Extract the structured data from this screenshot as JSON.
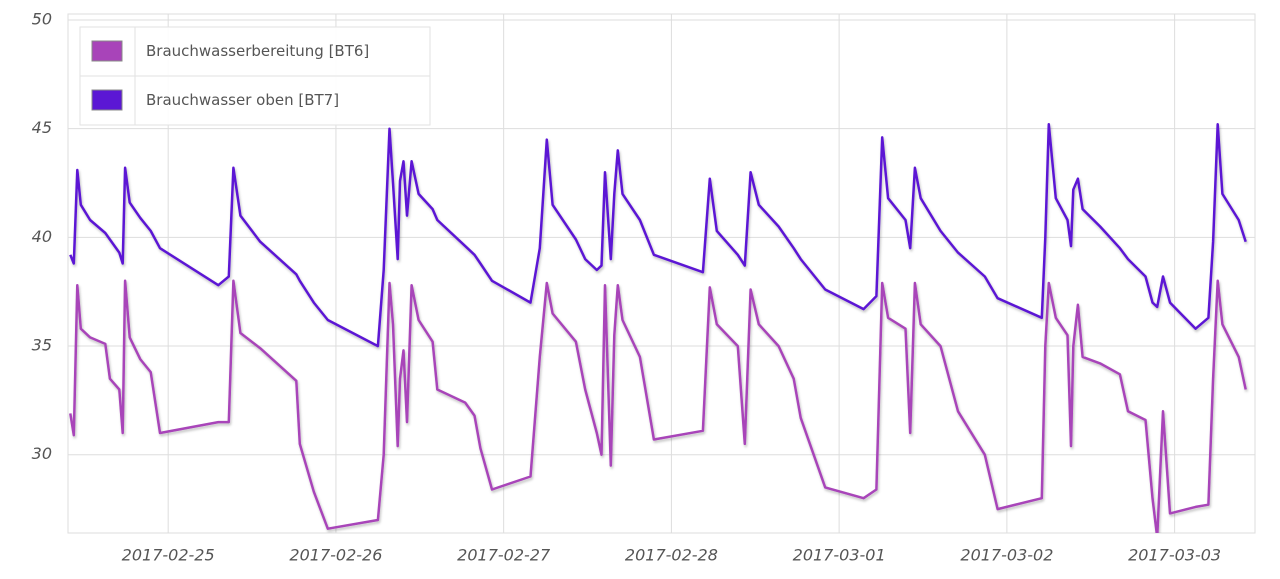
{
  "chart_data": {
    "type": "line",
    "x": [
      "2017-02-24 10:00",
      "2017-02-24 10:30",
      "2017-02-24 11:00",
      "2017-02-24 11:30",
      "2017-02-24 12:50",
      "2017-02-24 15:00",
      "2017-02-24 15:40",
      "2017-02-24 17:00",
      "2017-02-24 17:30",
      "2017-02-24 17:50",
      "2017-02-24 18:30",
      "2017-02-24 20:00",
      "2017-02-24 21:30",
      "2017-02-24 22:50",
      "2017-02-25 07:10",
      "2017-02-25 08:40",
      "2017-02-25 09:20",
      "2017-02-25 10:20",
      "2017-02-25 13:10",
      "2017-02-25 18:20",
      "2017-02-25 18:50",
      "2017-02-25 20:50",
      "2017-02-25 22:50",
      "2017-02-26 06:00",
      "2017-02-26 06:50",
      "2017-02-26 07:40",
      "2017-02-26 08:10",
      "2017-02-26 08:50",
      "2017-02-26 09:10",
      "2017-02-26 09:40",
      "2017-02-26 10:10",
      "2017-02-26 10:50",
      "2017-02-26 11:50",
      "2017-02-26 13:50",
      "2017-02-26 14:30",
      "2017-02-26 18:30",
      "2017-02-26 19:50",
      "2017-02-26 20:40",
      "2017-02-26 22:20",
      "2017-02-27 03:50",
      "2017-02-27 05:10",
      "2017-02-27 06:10",
      "2017-02-27 07:00",
      "2017-02-27 10:20",
      "2017-02-27 11:40",
      "2017-02-27 13:20",
      "2017-02-27 14:00",
      "2017-02-27 14:30",
      "2017-02-27 15:20",
      "2017-02-27 15:50",
      "2017-02-27 16:20",
      "2017-02-27 17:00",
      "2017-02-27 19:30",
      "2017-02-27 21:30",
      "2017-02-28 04:30",
      "2017-02-28 05:30",
      "2017-02-28 06:30",
      "2017-02-28 09:30",
      "2017-02-28 10:30",
      "2017-02-28 11:20",
      "2017-02-28 12:30",
      "2017-02-28 15:20",
      "2017-02-28 17:30",
      "2017-02-28 18:30",
      "2017-02-28 22:00",
      "2017-03-01 03:30",
      "2017-03-01 05:20",
      "2017-03-01 06:10",
      "2017-03-01 07:00",
      "2017-03-01 09:30",
      "2017-03-01 10:10",
      "2017-03-01 10:50",
      "2017-03-01 11:40",
      "2017-03-01 14:30",
      "2017-03-01 17:00",
      "2017-03-01 20:50",
      "2017-03-01 22:40",
      "2017-03-02 05:00",
      "2017-03-02 05:30",
      "2017-03-02 06:00",
      "2017-03-02 07:00",
      "2017-03-02 08:40",
      "2017-03-02 09:10",
      "2017-03-02 09:30",
      "2017-03-02 10:10",
      "2017-03-02 10:50",
      "2017-03-02 13:20",
      "2017-03-02 16:10",
      "2017-03-02 17:20",
      "2017-03-02 19:50",
      "2017-03-02 20:50",
      "2017-03-02 21:30",
      "2017-03-02 22:20",
      "2017-03-02 23:20",
      "2017-03-03 03:00",
      "2017-03-03 04:50",
      "2017-03-03 05:30",
      "2017-03-03 06:10",
      "2017-03-03 06:50",
      "2017-03-03 09:10",
      "2017-03-03 10:10"
    ],
    "series": [
      {
        "name": "Brauchwasserbereitung [BT6]",
        "color": "#a844b9",
        "values": [
          31.9,
          30.9,
          37.8,
          35.8,
          35.4,
          35.1,
          33.5,
          33.0,
          31.0,
          38.0,
          35.4,
          34.4,
          33.8,
          31.0,
          31.5,
          31.5,
          38.0,
          35.6,
          34.9,
          33.4,
          30.5,
          28.3,
          26.6,
          27.0,
          30.0,
          37.9,
          36.0,
          30.4,
          33.5,
          34.8,
          31.5,
          37.8,
          36.2,
          35.2,
          33.0,
          32.4,
          31.8,
          30.3,
          28.4,
          29.0,
          34.5,
          37.9,
          36.5,
          35.2,
          33.0,
          31.0,
          30.0,
          37.8,
          29.5,
          35.5,
          37.8,
          36.2,
          34.5,
          30.7,
          31.1,
          37.7,
          36.0,
          35.0,
          30.5,
          37.6,
          36.0,
          35.0,
          33.5,
          31.7,
          28.5,
          28.0,
          28.4,
          37.9,
          36.3,
          35.8,
          31.0,
          37.9,
          36.0,
          35.0,
          32.0,
          30.0,
          27.5,
          28.0,
          35.0,
          37.9,
          36.3,
          35.5,
          30.4,
          35.0,
          36.9,
          34.5,
          34.2,
          33.7,
          32.0,
          31.6,
          28.0,
          26.2,
          32.0,
          27.3,
          27.6,
          27.7,
          33.5,
          38.0,
          36.0,
          34.5,
          33.0
        ]
      },
      {
        "name": "Brauchwasser oben [BT7]",
        "color": "#5b17d4",
        "values": [
          39.2,
          38.8,
          43.1,
          41.5,
          40.8,
          40.2,
          39.9,
          39.3,
          38.8,
          43.2,
          41.6,
          40.9,
          40.3,
          39.5,
          37.8,
          38.2,
          43.2,
          41.0,
          39.8,
          38.3,
          38.0,
          37.0,
          36.2,
          35.0,
          38.5,
          45.0,
          42.5,
          39.0,
          42.6,
          43.5,
          41.0,
          43.5,
          42.0,
          41.3,
          40.8,
          39.6,
          39.2,
          38.8,
          38.0,
          37.0,
          39.5,
          44.5,
          41.5,
          39.9,
          39.0,
          38.5,
          38.7,
          43.0,
          39.0,
          42.0,
          44.0,
          42.0,
          40.8,
          39.2,
          38.4,
          42.7,
          40.3,
          39.2,
          38.7,
          43.0,
          41.5,
          40.5,
          39.5,
          39.0,
          37.6,
          36.7,
          37.3,
          44.6,
          41.8,
          40.8,
          39.5,
          43.2,
          41.8,
          40.3,
          39.3,
          38.2,
          37.2,
          36.3,
          40.0,
          45.2,
          41.8,
          40.8,
          39.6,
          42.2,
          42.7,
          41.3,
          40.5,
          39.5,
          39.0,
          38.2,
          37.0,
          36.8,
          38.2,
          37.0,
          35.8,
          36.3,
          39.8,
          45.2,
          42.0,
          40.8,
          39.8
        ]
      }
    ],
    "xlim": [
      "2017-02-24 09:40",
      "2017-03-03 11:30"
    ],
    "xticks": [
      "2017-02-25",
      "2017-02-26",
      "2017-02-27",
      "2017-02-28",
      "2017-03-01",
      "2017-03-02",
      "2017-03-03"
    ],
    "ylim": [
      26.4,
      50
    ],
    "yticks": [
      30,
      35,
      40,
      45,
      50
    ],
    "grid": true,
    "legend": "upper left"
  }
}
